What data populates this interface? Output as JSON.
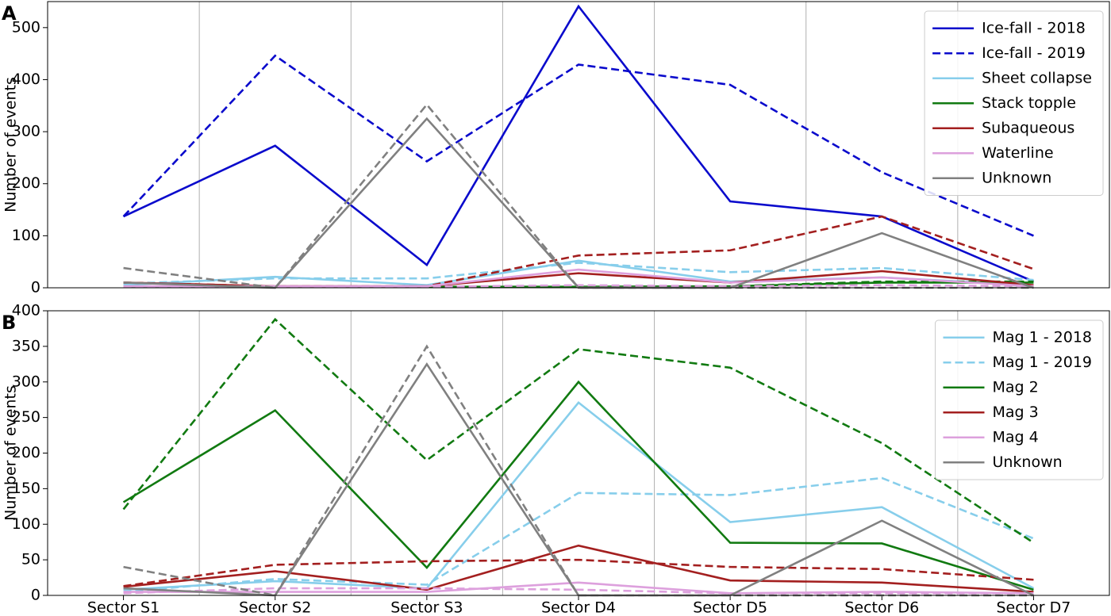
{
  "chart_data": [
    {
      "type": "line",
      "panel_label": "A",
      "y_label": "Number of events",
      "ylim": [
        0,
        550
      ],
      "yticks": [
        0,
        100,
        200,
        300,
        400,
        500
      ],
      "xgrid": true,
      "legend": "upper right",
      "series": [
        {
          "name": "Ice-fall - 2018",
          "color": "#0a0acc",
          "values": [
            137,
            273,
            44,
            541,
            166,
            137,
            12
          ]
        },
        {
          "name": "Ice-fall - 2019",
          "color": "#0a0acc",
          "dash": true,
          "values": [
            137,
            446,
            243,
            429,
            390,
            222,
            100
          ]
        },
        {
          "name": "Sheet collapse",
          "color": "#87ceeb",
          "values": [
            5,
            21,
            5,
            52,
            12,
            20,
            5
          ]
        },
        {
          "color": "#87ceeb",
          "dash": true,
          "values": [
            8,
            18,
            18,
            48,
            30,
            38,
            15
          ]
        },
        {
          "name": "Stack topple",
          "color": "#117a11",
          "values": [
            2,
            2,
            2,
            2,
            3,
            10,
            10
          ]
        },
        {
          "color": "#117a11",
          "dash": true,
          "values": [
            2,
            2,
            2,
            2,
            3,
            12,
            12
          ]
        },
        {
          "name": "Subaqueous",
          "color": "#a31f1f",
          "values": [
            10,
            3,
            3,
            28,
            10,
            32,
            5
          ]
        },
        {
          "color": "#a31f1f",
          "dash": true,
          "values": [
            10,
            3,
            3,
            62,
            72,
            137,
            36
          ]
        },
        {
          "name": "Waterline",
          "color": "#dda0dd",
          "values": [
            3,
            3,
            3,
            35,
            10,
            20,
            3
          ]
        },
        {
          "color": "#dda0dd",
          "dash": true,
          "values": [
            2,
            2,
            2,
            5,
            3,
            5,
            3
          ]
        },
        {
          "name": "Unknown",
          "color": "#808080",
          "values": [
            10,
            0,
            325,
            0,
            0,
            105,
            0
          ]
        },
        {
          "color": "#808080",
          "dash": true,
          "values": [
            38,
            0,
            352,
            0,
            0,
            0,
            0
          ]
        }
      ]
    },
    {
      "type": "line",
      "panel_label": "B",
      "y_label": "Number of events",
      "categories": [
        "Sector S1",
        "Sector S2",
        "Sector S3",
        "Sector D4",
        "Sector D5",
        "Sector D6",
        "Sector D7"
      ],
      "ylim": [
        0,
        400
      ],
      "yticks": [
        0,
        50,
        100,
        150,
        200,
        250,
        300,
        350,
        400
      ],
      "xgrid": true,
      "legend": "upper right",
      "series": [
        {
          "name": "Mag 1 - 2018",
          "color": "#87ceeb",
          "values": [
            8,
            20,
            10,
            271,
            103,
            124,
            10
          ]
        },
        {
          "name": "Mag 1 - 2019",
          "color": "#87ceeb",
          "dash": true,
          "values": [
            5,
            23,
            15,
            144,
            141,
            165,
            80
          ]
        },
        {
          "name": "Mag 2",
          "color": "#117a11",
          "values": [
            131,
            260,
            39,
            300,
            74,
            73,
            8
          ]
        },
        {
          "color": "#117a11",
          "dash": true,
          "values": [
            121,
            388,
            190,
            346,
            320,
            214,
            74
          ]
        },
        {
          "name": "Mag 3",
          "color": "#a31f1f",
          "values": [
            12,
            34,
            8,
            70,
            21,
            18,
            5
          ]
        },
        {
          "color": "#a31f1f",
          "dash": true,
          "values": [
            13,
            43,
            48,
            50,
            40,
            37,
            22
          ]
        },
        {
          "name": "Mag 4",
          "color": "#dda0dd",
          "values": [
            5,
            5,
            5,
            18,
            3,
            5,
            3
          ]
        },
        {
          "color": "#dda0dd",
          "dash": true,
          "values": [
            3,
            10,
            10,
            8,
            3,
            3,
            3
          ]
        },
        {
          "name": "Unknown",
          "color": "#808080",
          "values": [
            10,
            0,
            325,
            0,
            0,
            105,
            0
          ]
        },
        {
          "color": "#808080",
          "dash": true,
          "values": [
            40,
            0,
            350,
            0,
            0,
            0,
            0
          ]
        }
      ]
    }
  ]
}
